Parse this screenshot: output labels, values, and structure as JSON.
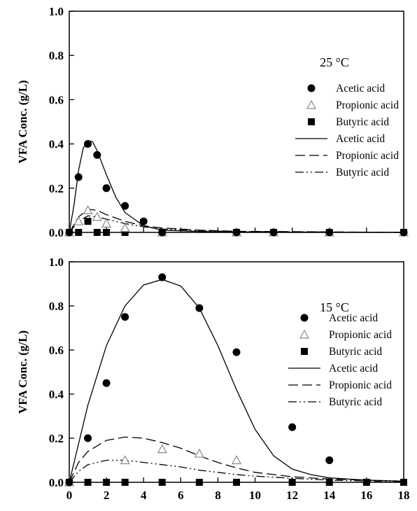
{
  "chart_data": [
    {
      "type": "scatter",
      "panel": "top",
      "temperature_label": "25 °C",
      "title": "",
      "xlabel": "",
      "ylabel": "VFA Conc. (g/L)",
      "xlim": [
        0,
        18
      ],
      "ylim": [
        0,
        1.0
      ],
      "x_ticks": [
        "0",
        "2",
        "4",
        "6",
        "8",
        "10",
        "12",
        "14",
        "16",
        "18"
      ],
      "y_ticks": [
        "0.0",
        "0.2",
        "0.4",
        "0.6",
        "0.8",
        "1.0"
      ],
      "legend_position": "right",
      "grid": false,
      "points": [
        {
          "name": "Acetic acid",
          "marker": "filled-circle",
          "x": [
            0,
            0.5,
            1,
            1.5,
            2,
            3,
            4,
            5,
            9,
            11,
            14,
            18
          ],
          "y": [
            0,
            0.25,
            0.4,
            0.35,
            0.2,
            0.12,
            0.05,
            0,
            0,
            0,
            0,
            0
          ]
        },
        {
          "name": "Propionic acid",
          "marker": "open-triangle",
          "x": [
            0,
            0.5,
            1,
            1.5,
            2,
            3,
            5,
            9,
            11,
            14,
            18
          ],
          "y": [
            0,
            0.05,
            0.1,
            0.07,
            0.04,
            0.02,
            0,
            0,
            0,
            0,
            0
          ]
        },
        {
          "name": "Butyric acid",
          "marker": "filled-square",
          "x": [
            0,
            0.5,
            1,
            1.5,
            2,
            3,
            5,
            9,
            11,
            14,
            18
          ],
          "y": [
            0,
            0,
            0.05,
            0,
            0,
            0,
            0,
            0,
            0,
            0,
            0
          ]
        }
      ],
      "lines": [
        {
          "name": "Acetic acid",
          "style": "solid",
          "x": [
            0,
            0.25,
            0.5,
            0.75,
            1,
            1.25,
            1.5,
            2,
            2.5,
            3,
            4,
            5,
            7,
            9,
            12,
            18
          ],
          "y": [
            0,
            0.12,
            0.28,
            0.38,
            0.415,
            0.41,
            0.37,
            0.26,
            0.16,
            0.09,
            0.03,
            0.01,
            0.004,
            0.002,
            0.001,
            0
          ]
        },
        {
          "name": "Propionic acid",
          "style": "dash",
          "x": [
            0,
            0.5,
            1,
            1.5,
            2,
            3,
            4,
            5,
            7,
            9,
            18
          ],
          "y": [
            0,
            0.07,
            0.105,
            0.1,
            0.08,
            0.05,
            0.03,
            0.02,
            0.01,
            0.005,
            0
          ]
        },
        {
          "name": "Butyric acid",
          "style": "dash-dot-dot",
          "x": [
            0,
            0.5,
            1,
            1.5,
            2,
            3,
            4,
            5,
            7,
            9,
            18
          ],
          "y": [
            0,
            0.05,
            0.075,
            0.07,
            0.06,
            0.04,
            0.025,
            0.015,
            0.008,
            0.004,
            0
          ]
        }
      ]
    },
    {
      "type": "scatter",
      "panel": "bottom",
      "temperature_label": "15 °C",
      "title": "",
      "xlabel": "",
      "ylabel": "VFA Conc. (g/L)",
      "xlim": [
        0,
        18
      ],
      "ylim": [
        0,
        1.0
      ],
      "x_ticks": [
        "0",
        "2",
        "4",
        "6",
        "8",
        "10",
        "12",
        "14",
        "16",
        "18"
      ],
      "y_ticks": [
        "0.0",
        "0.2",
        "0.4",
        "0.6",
        "0.8",
        "1.0"
      ],
      "legend_position": "right",
      "grid": false,
      "points": [
        {
          "name": "Acetic acid",
          "marker": "filled-circle",
          "x": [
            0,
            1,
            2,
            3,
            5,
            7,
            9,
            12,
            14
          ],
          "y": [
            0,
            0.2,
            0.45,
            0.75,
            0.93,
            0.79,
            0.59,
            0.25,
            0.1
          ]
        },
        {
          "name": "Propionic acid",
          "marker": "open-triangle",
          "x": [
            0,
            3,
            5,
            7,
            9
          ],
          "y": [
            0,
            0.1,
            0.15,
            0.13,
            0.1
          ]
        },
        {
          "name": "Butyric acid",
          "marker": "filled-square",
          "x": [
            0,
            1,
            2,
            3,
            5,
            7,
            9,
            12,
            14,
            16,
            18
          ],
          "y": [
            0,
            0,
            0,
            0,
            0,
            0,
            0,
            0,
            0,
            0,
            0
          ]
        }
      ],
      "lines": [
        {
          "name": "Acetic acid",
          "style": "solid",
          "x": [
            0,
            1,
            2,
            3,
            4,
            5,
            6,
            7,
            8,
            9,
            10,
            11,
            12,
            13,
            14,
            16,
            18
          ],
          "y": [
            0,
            0.35,
            0.62,
            0.8,
            0.895,
            0.92,
            0.89,
            0.79,
            0.62,
            0.42,
            0.24,
            0.12,
            0.06,
            0.035,
            0.02,
            0.01,
            0.005
          ]
        },
        {
          "name": "Propionic acid",
          "style": "dash",
          "x": [
            0,
            0.5,
            1,
            2,
            3,
            4,
            5,
            6,
            7,
            8,
            9,
            10,
            12,
            14,
            16,
            18
          ],
          "y": [
            0,
            0.09,
            0.14,
            0.19,
            0.205,
            0.2,
            0.18,
            0.155,
            0.12,
            0.09,
            0.065,
            0.045,
            0.025,
            0.015,
            0.01,
            0.005
          ]
        },
        {
          "name": "Butyric acid",
          "style": "dash-dot-dot",
          "x": [
            0,
            0.5,
            1,
            2,
            3,
            4,
            5,
            6,
            7,
            8,
            9,
            10,
            12,
            14,
            16,
            18
          ],
          "y": [
            0,
            0.05,
            0.08,
            0.1,
            0.1,
            0.09,
            0.08,
            0.07,
            0.055,
            0.045,
            0.035,
            0.028,
            0.018,
            0.01,
            0.006,
            0.003
          ]
        }
      ]
    }
  ]
}
